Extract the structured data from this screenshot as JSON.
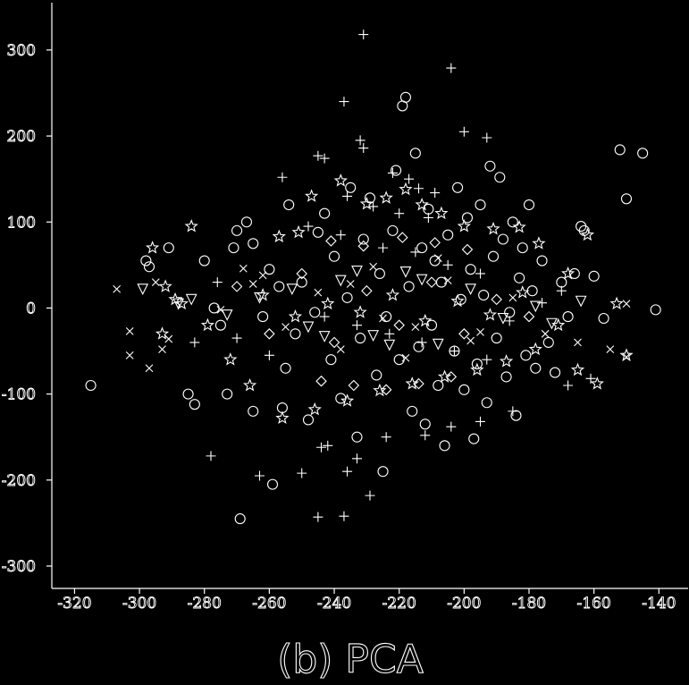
{
  "caption": "(b) PCA",
  "chart_data": {
    "type": "scatter",
    "title": "",
    "xlabel": "",
    "ylabel": "",
    "xlim": [
      -327,
      -131
    ],
    "ylim": [
      -326,
      355
    ],
    "xticks": [
      -320,
      -300,
      -280,
      -260,
      -240,
      -220,
      -200,
      -180,
      -160,
      -140
    ],
    "xtick_labels": [
      "-320",
      "-300",
      "-280",
      "-260",
      "-240",
      "-220",
      "-200",
      "-180",
      "-160",
      "-140"
    ],
    "yticks": [
      300,
      200,
      100,
      0,
      -100,
      -200,
      -300
    ],
    "ytick_labels": [
      "300",
      "200",
      "100",
      "0",
      "-100",
      "-200",
      "-300"
    ],
    "grid": false,
    "legend": "none",
    "colors": {
      "background": "#000000",
      "foreground": "#ffffff"
    },
    "series": [
      {
        "marker": "circle",
        "points": [
          [
            -315,
            -90
          ],
          [
            -298,
            55
          ],
          [
            -297,
            48
          ],
          [
            -291,
            70
          ],
          [
            -285,
            -100
          ],
          [
            -283,
            -112
          ],
          [
            -280,
            55
          ],
          [
            -277,
            0
          ],
          [
            -275,
            -20
          ],
          [
            -273,
            -100
          ],
          [
            -271,
            70
          ],
          [
            -270,
            90
          ],
          [
            -269,
            -245
          ],
          [
            -267,
            100
          ],
          [
            -265,
            75
          ],
          [
            -265,
            -120
          ],
          [
            -262,
            -10
          ],
          [
            -260,
            45
          ],
          [
            -259,
            -205
          ],
          [
            -257,
            25
          ],
          [
            -256,
            -116
          ],
          [
            -255,
            -70
          ],
          [
            -254,
            120
          ],
          [
            -252,
            -30
          ],
          [
            -250,
            30
          ],
          [
            -248,
            -130
          ],
          [
            -246,
            -5
          ],
          [
            -245,
            88
          ],
          [
            -243,
            110
          ],
          [
            -241,
            -60
          ],
          [
            -240,
            60
          ],
          [
            -238,
            -105
          ],
          [
            -236,
            12
          ],
          [
            -235,
            140
          ],
          [
            -233,
            -150
          ],
          [
            -232,
            -35
          ],
          [
            -231,
            80
          ],
          [
            -229,
            128
          ],
          [
            -227,
            -78
          ],
          [
            -226,
            40
          ],
          [
            -225,
            -190
          ],
          [
            -224,
            -10
          ],
          [
            -222,
            90
          ],
          [
            -221,
            160
          ],
          [
            -220,
            -60
          ],
          [
            -219,
            235
          ],
          [
            -218,
            245
          ],
          [
            -217,
            25
          ],
          [
            -216,
            -120
          ],
          [
            -215,
            180
          ],
          [
            -214,
            -45
          ],
          [
            -213,
            70
          ],
          [
            -212,
            -135
          ],
          [
            -211,
            115
          ],
          [
            -210,
            -20
          ],
          [
            -209,
            55
          ],
          [
            -208,
            -90
          ],
          [
            -207,
            30
          ],
          [
            -206,
            -160
          ],
          [
            -205,
            85
          ],
          [
            -203,
            -50
          ],
          [
            -202,
            140
          ],
          [
            -201,
            10
          ],
          [
            -200,
            -95
          ],
          [
            -199,
            105
          ],
          [
            -198,
            45
          ],
          [
            -197,
            -152
          ],
          [
            -196,
            -65
          ],
          [
            -195,
            120
          ],
          [
            -194,
            15
          ],
          [
            -193,
            -110
          ],
          [
            -192,
            165
          ],
          [
            -191,
            60
          ],
          [
            -190,
            -35
          ],
          [
            -189,
            152
          ],
          [
            -188,
            80
          ],
          [
            -187,
            -80
          ],
          [
            -186,
            -5
          ],
          [
            -185,
            100
          ],
          [
            -184,
            -125
          ],
          [
            -183,
            35
          ],
          [
            -182,
            70
          ],
          [
            -181,
            -55
          ],
          [
            -180,
            120
          ],
          [
            -179,
            20
          ],
          [
            -178,
            -70
          ],
          [
            -176,
            55
          ],
          [
            -174,
            -40
          ],
          [
            -172,
            -75
          ],
          [
            -170,
            30
          ],
          [
            -168,
            -10
          ],
          [
            -166,
            40
          ],
          [
            -164,
            95
          ],
          [
            -163,
            90
          ],
          [
            -160,
            37
          ],
          [
            -157,
            -12
          ],
          [
            -152,
            184
          ],
          [
            -150,
            127
          ],
          [
            -145,
            180
          ],
          [
            -141,
            -2
          ]
        ]
      },
      {
        "marker": "plus",
        "points": [
          [
            -231,
            318
          ],
          [
            -204,
            279
          ],
          [
            -237,
            240
          ],
          [
            -200,
            205
          ],
          [
            -193,
            198
          ],
          [
            -232,
            195
          ],
          [
            -231,
            186
          ],
          [
            -245,
            177
          ],
          [
            -243,
            174
          ],
          [
            -222,
            157
          ],
          [
            -217,
            150
          ],
          [
            -214,
            139
          ],
          [
            -209,
            134
          ],
          [
            -256,
            152
          ],
          [
            -236,
            130
          ],
          [
            -228,
            118
          ],
          [
            -220,
            110
          ],
          [
            -211,
            105
          ],
          [
            -248,
            95
          ],
          [
            -238,
            85
          ],
          [
            -225,
            70
          ],
          [
            -215,
            65
          ],
          [
            -205,
            50
          ],
          [
            -195,
            40
          ],
          [
            -243,
            -10
          ],
          [
            -233,
            -20
          ],
          [
            -223,
            -30
          ],
          [
            -213,
            -40
          ],
          [
            -203,
            -50
          ],
          [
            -193,
            -60
          ],
          [
            -278,
            -172
          ],
          [
            -263,
            -195
          ],
          [
            -250,
            -192
          ],
          [
            -242,
            -160
          ],
          [
            -236,
            -190
          ],
          [
            -229,
            -218
          ],
          [
            -245,
            -243
          ],
          [
            -237,
            -242
          ],
          [
            -244,
            -162
          ],
          [
            -233,
            -175
          ],
          [
            -224,
            -150
          ],
          [
            -212,
            -148
          ],
          [
            -204,
            -138
          ],
          [
            -195,
            -132
          ],
          [
            -185,
            -120
          ],
          [
            -168,
            -90
          ],
          [
            -161,
            -82
          ],
          [
            -170,
            20
          ],
          [
            -176,
            6
          ],
          [
            -186,
            -15
          ],
          [
            -260,
            -55
          ],
          [
            -270,
            -35
          ],
          [
            -276,
            30
          ],
          [
            -283,
            -40
          ]
        ]
      },
      {
        "marker": "star",
        "points": [
          [
            -296,
            70
          ],
          [
            -284,
            95
          ],
          [
            -257,
            83
          ],
          [
            -251,
            88
          ],
          [
            -247,
            130
          ],
          [
            -238,
            148
          ],
          [
            -230,
            121
          ],
          [
            -224,
            128
          ],
          [
            -218,
            138
          ],
          [
            -213,
            120
          ],
          [
            -207,
            110
          ],
          [
            -200,
            95
          ],
          [
            -191,
            92
          ],
          [
            -183,
            94
          ],
          [
            -177,
            75
          ],
          [
            -168,
            40
          ],
          [
            -162,
            85
          ],
          [
            -159,
            -88
          ],
          [
            -165,
            -72
          ],
          [
            -150,
            -55
          ],
          [
            -153,
            5
          ],
          [
            -171,
            -20
          ],
          [
            -178,
            -48
          ],
          [
            -187,
            -62
          ],
          [
            -196,
            -72
          ],
          [
            -206,
            -80
          ],
          [
            -216,
            -88
          ],
          [
            -226,
            -96
          ],
          [
            -236,
            -108
          ],
          [
            -246,
            -118
          ],
          [
            -256,
            -128
          ],
          [
            -266,
            -90
          ],
          [
            -272,
            -60
          ],
          [
            -279,
            -20
          ],
          [
            -287,
            5
          ],
          [
            -293,
            -30
          ],
          [
            -289,
            10
          ],
          [
            -292,
            25
          ],
          [
            -262,
            15
          ],
          [
            -252,
            -10
          ],
          [
            -242,
            5
          ],
          [
            -232,
            -5
          ],
          [
            -222,
            15
          ],
          [
            -212,
            -15
          ],
          [
            -202,
            8
          ],
          [
            -192,
            -8
          ],
          [
            -182,
            18
          ]
        ]
      },
      {
        "marker": "x",
        "points": [
          [
            -307,
            22
          ],
          [
            -303,
            -27
          ],
          [
            -303,
            -55
          ],
          [
            -297,
            -70
          ],
          [
            -295,
            30
          ],
          [
            -293,
            -48
          ],
          [
            -291,
            -36
          ],
          [
            -150,
            5
          ],
          [
            -150,
            -57
          ],
          [
            -155,
            -48
          ],
          [
            -165,
            -40
          ],
          [
            -175,
            -30
          ],
          [
            -245,
            18
          ],
          [
            -235,
            28
          ],
          [
            -225,
            -12
          ],
          [
            -215,
            -22
          ],
          [
            -205,
            32
          ],
          [
            -195,
            -28
          ],
          [
            -255,
            -22
          ],
          [
            -265,
            28
          ],
          [
            -275,
            -2
          ],
          [
            -185,
            12
          ],
          [
            -268,
            46
          ],
          [
            -262,
            38
          ],
          [
            -238,
            -48
          ],
          [
            -228,
            48
          ],
          [
            -218,
            -58
          ],
          [
            -208,
            58
          ],
          [
            -198,
            -38
          ]
        ]
      },
      {
        "marker": "triangle",
        "points": [
          [
            -299,
            22
          ],
          [
            -284,
            10
          ],
          [
            -288,
            5
          ],
          [
            -273,
            -8
          ],
          [
            -263,
            12
          ],
          [
            -248,
            -22
          ],
          [
            -238,
            32
          ],
          [
            -228,
            -32
          ],
          [
            -218,
            42
          ],
          [
            -208,
            -42
          ],
          [
            -198,
            22
          ],
          [
            -188,
            -12
          ],
          [
            -178,
            2
          ],
          [
            -173,
            -18
          ],
          [
            -164,
            8
          ],
          [
            -253,
            22
          ],
          [
            -243,
            -33
          ],
          [
            -233,
            43
          ],
          [
            -223,
            -43
          ],
          [
            -213,
            33
          ]
        ]
      },
      {
        "marker": "diamond",
        "points": [
          [
            -270,
            25
          ],
          [
            -260,
            -30
          ],
          [
            -250,
            40
          ],
          [
            -240,
            -40
          ],
          [
            -230,
            20
          ],
          [
            -220,
            -20
          ],
          [
            -210,
            30
          ],
          [
            -200,
            -30
          ],
          [
            -190,
            10
          ],
          [
            -180,
            -10
          ],
          [
            -244,
            -85
          ],
          [
            -234,
            -90
          ],
          [
            -224,
            -95
          ],
          [
            -214,
            -88
          ],
          [
            -204,
            -80
          ],
          [
            -241,
            78
          ],
          [
            -231,
            72
          ],
          [
            -219,
            82
          ],
          [
            -209,
            76
          ],
          [
            -199,
            68
          ]
        ]
      }
    ]
  }
}
